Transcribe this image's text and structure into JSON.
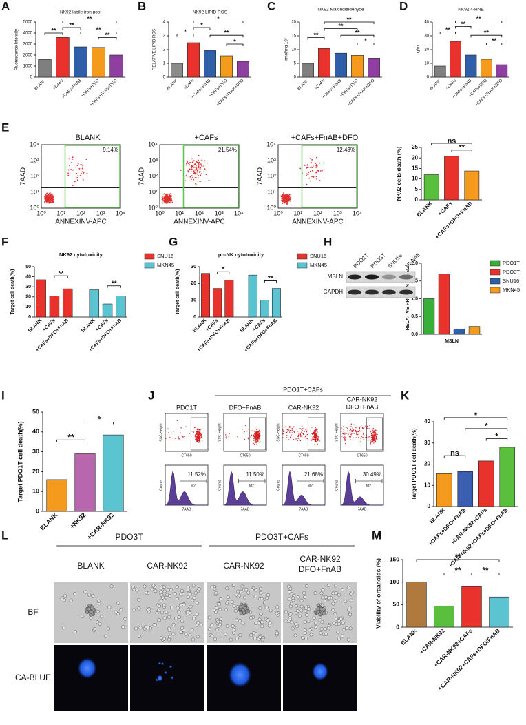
{
  "panel_labels": [
    "A",
    "B",
    "C",
    "D",
    "E",
    "F",
    "G",
    "H",
    "I",
    "J",
    "K",
    "L",
    "M"
  ],
  "chart_data": [
    {
      "type": "bar",
      "title": "NK92 labile iron pool",
      "ylabel": "Fluorescence Intensity",
      "categories": [
        "BLANK",
        "+CAFs",
        "+CAFs+FnAB",
        "+CAFs+DFO",
        "+CAFs+FnAB+DFO"
      ],
      "values": [
        1600,
        3600,
        2750,
        2700,
        2000
      ],
      "colors": [
        "#7f7f7f",
        "#e8322b",
        "#2e5fa8",
        "#f49a1c",
        "#8e3fa0"
      ],
      "ylim": [
        0,
        5000
      ],
      "yticks": [
        0,
        1000,
        2000,
        3000,
        4000,
        5000
      ],
      "annotations": [
        "**",
        "**",
        "**",
        "**",
        "**"
      ]
    },
    {
      "type": "bar",
      "title": "NK92 LIPID ROS",
      "ylabel": "RELATIVE LIPID ROS",
      "categories": [
        "BLANK",
        "+CAFs",
        "+CAFs+FnAB",
        "+CAFs+DFO",
        "+CAFs+FnAB+DFO"
      ],
      "values": [
        1.0,
        2.5,
        1.95,
        1.55,
        1.15
      ],
      "colors": [
        "#8c8c8c",
        "#e8322b",
        "#2e5fa8",
        "#f49a1c",
        "#8e3fa0"
      ],
      "ylim": [
        0,
        4
      ],
      "yticks": [
        0,
        1,
        2,
        3,
        4
      ],
      "annotations": [
        "*",
        "*",
        "*",
        "**",
        "*"
      ]
    },
    {
      "type": "bar",
      "title": "NK92 Malondialdehyde",
      "ylabel": "nmol/mg 10²",
      "categories": [
        "BLANK",
        "+CAFs",
        "+CAFs+FnAB",
        "+CAFs+DFO",
        "+CAFs+FnAB+DFO"
      ],
      "values": [
        5,
        10.4,
        8.7,
        7.9,
        6.9
      ],
      "colors": [
        "#7f7f7f",
        "#e8322b",
        "#2e5fa8",
        "#f49a1c",
        "#8e3fa0"
      ],
      "ylim": [
        0,
        20
      ],
      "yticks": [
        0,
        5,
        10,
        15,
        20
      ],
      "annotations": [
        "**",
        "**",
        "**",
        "**",
        "*"
      ]
    },
    {
      "type": "bar",
      "title": "NK92 4-HNE",
      "ylabel": "ng/ml",
      "categories": [
        "BLANK",
        "+CAFs",
        "+CAFs+FnAB",
        "+CAFs+DFO",
        "+CAFs+FnAB+DFO"
      ],
      "values": [
        8,
        26,
        16,
        13,
        9
      ],
      "colors": [
        "#7f7f7f",
        "#e8322b",
        "#2e5fa8",
        "#f49a1c",
        "#8e3fa0"
      ],
      "ylim": [
        0,
        40
      ],
      "yticks": [
        0,
        10,
        20,
        30,
        40
      ],
      "annotations": [
        "**",
        "**",
        "**",
        "**",
        "**"
      ]
    },
    {
      "type": "bar",
      "ylabel": "NK92 cells death  (%)",
      "categories": [
        "BLANK",
        "+CAFs",
        "+CAFs+DFO+FnAB"
      ],
      "values": [
        12,
        20.8,
        13.8
      ],
      "colors": [
        "#5bbf3e",
        "#e8322b",
        "#f49a1c"
      ],
      "ylim": [
        0,
        25
      ],
      "yticks": [
        0,
        5,
        10,
        15,
        20,
        25
      ],
      "annotations": [
        "ns",
        "**"
      ]
    },
    {
      "type": "bar",
      "title": "NK92 cytotoxicity",
      "ylabel": "Target cell death(%)",
      "categories": [
        "BLANK",
        "+CAFs",
        "+CAFs+DFO+FnAB"
      ],
      "series": [
        {
          "name": "SNU16",
          "color": "#e8322b",
          "values": [
            37,
            21,
            28
          ]
        },
        {
          "name": "MKN45",
          "color": "#5bc4d1",
          "values": [
            27,
            13,
            21
          ]
        }
      ],
      "ylim": [
        0,
        50
      ],
      "yticks": [
        0,
        10,
        20,
        30,
        40,
        50
      ],
      "annotations": [
        "**",
        "**"
      ]
    },
    {
      "type": "bar",
      "title": "pb-NK cytotoxicity",
      "ylabel": "Target cell death(%)",
      "categories": [
        "BLANK",
        "+CAFs",
        "+CAFs+DFO+FnAB"
      ],
      "series": [
        {
          "name": "SNU16",
          "color": "#e8322b",
          "values": [
            26,
            17,
            22
          ]
        },
        {
          "name": "MKN45",
          "color": "#5bc4d1",
          "values": [
            25,
            10,
            17
          ]
        }
      ],
      "ylim": [
        0,
        30
      ],
      "yticks": [
        0,
        10,
        20,
        30
      ],
      "annotations": [
        "*",
        "**"
      ]
    },
    {
      "type": "bar",
      "ylabel": "RELATIVE  PROTEIN LEVEL",
      "xlabel": "MSLN",
      "categories": [
        "PDO1T",
        "PDO3T",
        "SNU16",
        "MKN45"
      ],
      "values": [
        1.0,
        1.7,
        0.15,
        0.22
      ],
      "colors": [
        "#3aae3a",
        "#e8322b",
        "#2e5fa8",
        "#f49a1c"
      ],
      "ylim": [
        0,
        2
      ],
      "yticks": [
        {
          "value": 0,
          "label": "0.0"
        },
        0.5,
        {
          "value": 1,
          "label": "1.0"
        },
        1.5,
        {
          "value": 2,
          "label": "2.0"
        }
      ]
    },
    {
      "type": "bar",
      "ylabel": "Target PDO1T cell death(%)",
      "categories": [
        "BLANK",
        "+NK92",
        "+CAR-NK92"
      ],
      "values": [
        16,
        29,
        38.5
      ],
      "colors": [
        "#f49a1c",
        "#b866ad",
        "#5bc4d1"
      ],
      "ylim": [
        0,
        50
      ],
      "yticks": [
        0,
        10,
        20,
        30,
        40,
        50
      ],
      "annotations": [
        "**",
        "*"
      ]
    },
    {
      "type": "bar",
      "ylabel": "Target PDO1T cell death(%)",
      "categories": [
        "BLANK",
        "+CAFs+DFO+FnAB",
        "+CAR-NK92+CAFs",
        "+CAR-NK92+CAFs+DFO+FnAB"
      ],
      "values": [
        15.5,
        16.5,
        21.5,
        28
      ],
      "colors": [
        "#f49a1c",
        "#3b5fb0",
        "#e8322b",
        "#5bbf3e"
      ],
      "ylim": [
        0,
        40
      ],
      "yticks": [
        0,
        10,
        20,
        30,
        40
      ],
      "annotations": [
        "ns",
        "*",
        "*",
        "*"
      ]
    },
    {
      "type": "bar",
      "ylabel": "Viability of organoids (%)",
      "categories": [
        "BLANK",
        "+CAR-NK92",
        "+CAR-NK92+CAFs",
        "+CAR-NK92+CAFs+DFO/FnAB"
      ],
      "values": [
        100,
        47,
        90,
        67
      ],
      "colors": [
        "#b07a3e",
        "#5bbf3e",
        "#e8322b",
        "#5bc4d1"
      ],
      "ylim": [
        0,
        150
      ],
      "yticks": [
        0,
        50,
        100,
        150
      ],
      "annotations": [
        "**",
        "**",
        "**"
      ]
    }
  ],
  "flow_E": {
    "panels": [
      {
        "title": "BLANK",
        "percent": "9.14%"
      },
      {
        "title": "+CAFs",
        "percent": "21.54%"
      },
      {
        "title": "+CAFs+FnAB+DFO",
        "percent": "12.43%"
      }
    ],
    "ylabel": "7AAD",
    "xlabel": "ANNEXINV-APC",
    "ticks": [
      "10⁰",
      "10¹",
      "10²",
      "10³",
      "10⁴"
    ]
  },
  "western_blot": {
    "lanes": [
      "PDO1T",
      "PDO3T",
      "SNU16",
      "MKN45"
    ],
    "rows": [
      "MSLN",
      "GAPDH"
    ]
  },
  "flow_J": {
    "header": "PDO1T+CAFs",
    "panels": [
      {
        "title": [
          "PDO1T"
        ],
        "percent": "11.52%"
      },
      {
        "title": [
          "DFO+FnAB"
        ],
        "percent": "11.50%"
      },
      {
        "title": [
          "CAR-NK92"
        ],
        "percent": "21.68%"
      },
      {
        "title": [
          "CAR-NK92",
          "DFO+FnAB"
        ],
        "percent": "30.49%"
      }
    ],
    "scatter_ylabel": "SSC-Height",
    "scatter_xlabel": "CT650",
    "hist_ylabel": "Counts",
    "hist_xlabel": "7AAD",
    "gate": "M2"
  },
  "microscopy_L": {
    "groups": [
      "PDO3T",
      "PDO3T+CAFs"
    ],
    "columns": [
      [
        "BLANK"
      ],
      [
        "CAR-NK92"
      ],
      [
        "CAR-NK92"
      ],
      [
        "CAR-NK92",
        "DFO+FnAB"
      ]
    ],
    "rows": [
      "BF",
      "CA-BLUE"
    ]
  }
}
